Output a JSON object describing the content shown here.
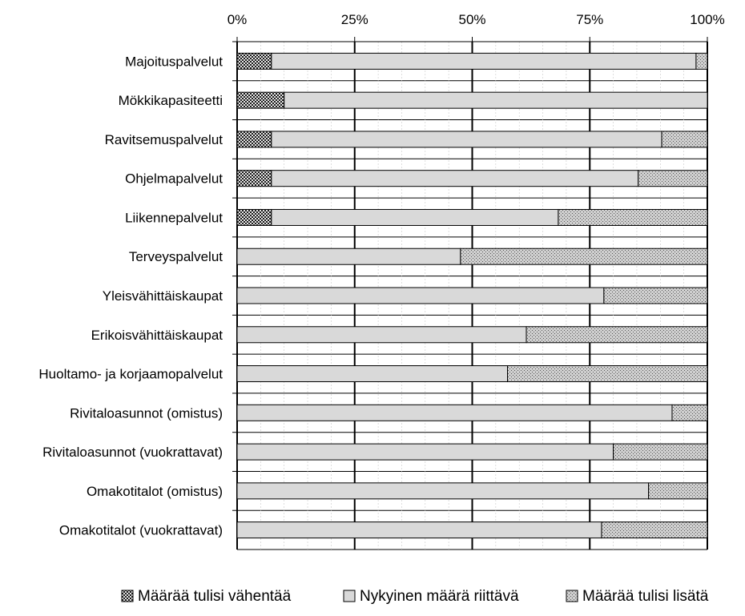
{
  "chart_data": {
    "type": "bar",
    "orientation": "horizontal",
    "stacked": true,
    "percent": true,
    "title": "",
    "xlabel": "",
    "ylabel": "",
    "xlim": [
      0,
      100
    ],
    "x_tick_labels": [
      "0%",
      "25%",
      "50%",
      "75%",
      "100%"
    ],
    "x_axis_position": "top",
    "grid": true,
    "legend_position": "bottom",
    "categories": [
      "Majoituspalvelut",
      "Mökkikapasiteetti",
      "Ravitsemuspalvelut",
      "Ohjelmapalvelut",
      "Liikennepalvelut",
      "Terveyspalvelut",
      "Yleisvähittäiskaupat",
      "Erikoisvähittäiskaupat",
      "Huoltamo- ja korjaamopalvelut",
      "Rivitaloasunnot (omistus)",
      "Rivitaloasunnot (vuokrattavat)",
      "Omakotitalot (omistus)",
      "Omakotitalot (vuokrattavat)"
    ],
    "series": [
      {
        "name": "Määrää tulisi vähentää",
        "pattern": "dark-checker",
        "color": "#4a4a4a",
        "values": [
          7.3,
          10,
          7.3,
          7.3,
          7.3,
          0,
          0,
          0,
          0,
          0,
          0,
          0,
          0
        ]
      },
      {
        "name": "Nykyinen määrä riittävä",
        "pattern": "solid",
        "color": "#d9d9d9",
        "values": [
          90.3,
          90,
          83,
          78,
          61,
          47.5,
          78,
          61.5,
          57.5,
          92.5,
          80,
          87.5,
          77.5
        ]
      },
      {
        "name": "Määrää tulisi lisätä",
        "pattern": "light-dots",
        "color": "#bfbfbf",
        "values": [
          2.4,
          0,
          9.7,
          14.7,
          31.7,
          52.5,
          22,
          38.5,
          42.5,
          7.5,
          20,
          12.5,
          22.5
        ]
      }
    ]
  }
}
